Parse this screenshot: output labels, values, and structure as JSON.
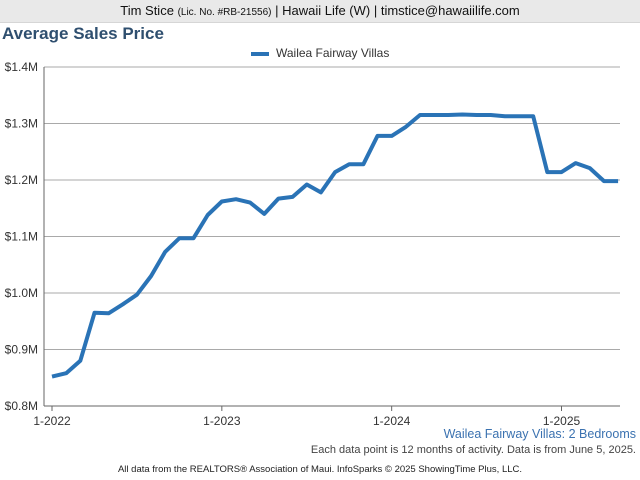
{
  "header": {
    "agent": "Tim Stice",
    "license": "(Lic. No. #RB-21556)",
    "rest": "| Hawaii Life (W) | timstice@hawaiilife.com"
  },
  "chart_data": {
    "type": "line",
    "title": "Average Sales Price",
    "series": [
      {
        "name": "Wailea Fairway Villas",
        "color": "#2a73b6",
        "x": [
          "2022-01",
          "2022-02",
          "2022-03",
          "2022-04",
          "2022-05",
          "2022-06",
          "2022-07",
          "2022-08",
          "2022-09",
          "2022-10",
          "2022-11",
          "2022-12",
          "2023-01",
          "2023-02",
          "2023-03",
          "2023-04",
          "2023-05",
          "2023-06",
          "2023-07",
          "2023-08",
          "2023-09",
          "2023-10",
          "2023-11",
          "2023-12",
          "2024-01",
          "2024-02",
          "2024-03",
          "2024-04",
          "2024-05",
          "2024-06",
          "2024-07",
          "2024-08",
          "2024-09",
          "2024-10",
          "2024-11",
          "2024-12",
          "2025-01",
          "2025-02",
          "2025-03",
          "2025-04",
          "2025-05"
        ],
        "values": [
          852000,
          858000,
          880000,
          965000,
          964000,
          980000,
          997000,
          1030000,
          1073000,
          1097000,
          1097000,
          1138000,
          1162000,
          1166000,
          1160000,
          1140000,
          1167000,
          1170000,
          1192000,
          1178000,
          1214000,
          1228000,
          1228000,
          1278000,
          1278000,
          1294000,
          1315000,
          1315000,
          1315000,
          1316000,
          1315000,
          1315000,
          1313000,
          1313000,
          1313000,
          1214000,
          1214000,
          1230000,
          1221000,
          1198000,
          1198000
        ]
      }
    ],
    "yticks": [
      "$0.8M",
      "$0.9M",
      "$1.0M",
      "$1.1M",
      "$1.2M",
      "$1.3M",
      "$1.4M"
    ],
    "ytick_values": [
      800000,
      900000,
      1000000,
      1100000,
      1200000,
      1300000,
      1400000
    ],
    "ylim": [
      800000,
      1400000
    ],
    "xticks": [
      "1-2022",
      "1-2023",
      "1-2024",
      "1-2025"
    ],
    "subtitle": "Wailea Fairway Villas: 2 Bedrooms",
    "note": "Each data point is 12 months of activity. Data is from June 5, 2025.",
    "footer": "All data from the REALTORS® Association of Maui. InfoSparks © 2025 ShowingTime Plus, LLC.",
    "grid": true,
    "legend_position": "top-center"
  }
}
